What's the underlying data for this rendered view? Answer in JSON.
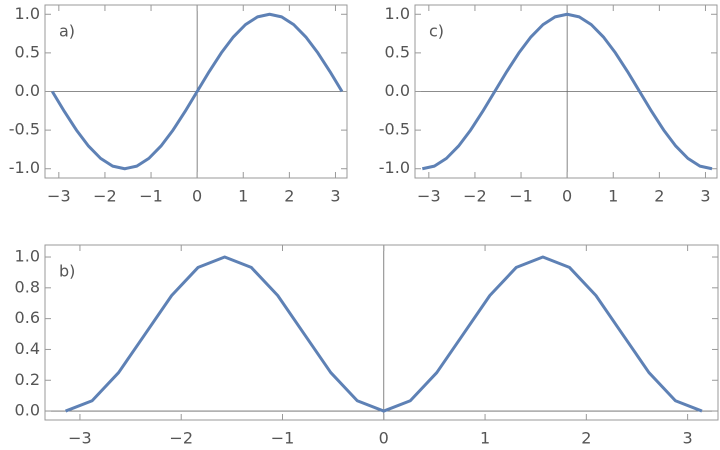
{
  "chart_data": [
    {
      "type": "line",
      "annotation": "a)",
      "color": "#5e81b5",
      "x": [
        -3.1416,
        -2.8798,
        -2.618,
        -2.3562,
        -2.0944,
        -1.8326,
        -1.5708,
        -1.309,
        -1.0472,
        -0.7854,
        -0.5236,
        -0.2618,
        0,
        0.2618,
        0.5236,
        0.7854,
        1.0472,
        1.309,
        1.5708,
        1.8326,
        2.0944,
        2.3562,
        2.618,
        2.8798,
        3.1416
      ],
      "values": [
        0,
        -0.2588,
        -0.5,
        -0.7071,
        -0.866,
        -0.9659,
        -1,
        -0.9659,
        -0.866,
        -0.7071,
        -0.5,
        -0.2588,
        0,
        0.2588,
        0.5,
        0.7071,
        0.866,
        0.9659,
        1,
        0.9659,
        0.866,
        0.7071,
        0.5,
        0.2588,
        0
      ],
      "xlim": [
        -3.3,
        3.25
      ],
      "ylim": [
        -1.12,
        1.12
      ],
      "xticks": [
        {
          "value": -3,
          "label": "−3"
        },
        {
          "value": -2,
          "label": "−2"
        },
        {
          "value": -1,
          "label": "−1"
        },
        0,
        1,
        2,
        3
      ],
      "yticks": [
        {
          "value": -1,
          "label": "-1.0"
        },
        {
          "value": -0.5,
          "label": "-0.5"
        },
        {
          "value": 0,
          "label": "0.0"
        },
        0.5,
        {
          "value": 1,
          "label": "1.0"
        }
      ]
    },
    {
      "type": "line",
      "annotation": "c)",
      "color": "#5e81b5",
      "x": [
        -3.1416,
        -2.8798,
        -2.618,
        -2.3562,
        -2.0944,
        -1.8326,
        -1.5708,
        -1.309,
        -1.0472,
        -0.7854,
        -0.5236,
        -0.2618,
        0,
        0.2618,
        0.5236,
        0.7854,
        1.0472,
        1.309,
        1.5708,
        1.8326,
        2.0944,
        2.3562,
        2.618,
        2.8798,
        3.1416
      ],
      "values": [
        -1,
        -0.9659,
        -0.866,
        -0.7071,
        -0.5,
        -0.2588,
        0,
        0.2588,
        0.5,
        0.7071,
        0.866,
        0.9659,
        1,
        0.9659,
        0.866,
        0.7071,
        0.5,
        0.2588,
        0,
        -0.2588,
        -0.5,
        -0.7071,
        -0.866,
        -0.9659,
        -1
      ],
      "xlim": [
        -3.3,
        3.25
      ],
      "ylim": [
        -1.12,
        1.12
      ],
      "xticks": [
        {
          "value": -3,
          "label": "−3"
        },
        {
          "value": -2,
          "label": "−2"
        },
        {
          "value": -1,
          "label": "−1"
        },
        0,
        1,
        2,
        3
      ],
      "yticks": [
        {
          "value": -1,
          "label": "-1.0"
        },
        {
          "value": -0.5,
          "label": "-0.5"
        },
        {
          "value": 0,
          "label": "0.0"
        },
        0.5,
        {
          "value": 1,
          "label": "1.0"
        }
      ]
    },
    {
      "type": "line",
      "annotation": "b)",
      "color": "#5e81b5",
      "x": [
        -3.1416,
        -2.8798,
        -2.618,
        -2.3562,
        -2.0944,
        -1.8326,
        -1.5708,
        -1.309,
        -1.0472,
        -0.7854,
        -0.5236,
        -0.2618,
        0,
        0.2618,
        0.5236,
        0.7854,
        1.0472,
        1.309,
        1.5708,
        1.8326,
        2.0944,
        2.3562,
        2.618,
        2.8798,
        3.1416
      ],
      "values": [
        0,
        0.067,
        0.25,
        0.5,
        0.75,
        0.933,
        1,
        0.933,
        0.75,
        0.5,
        0.25,
        0.067,
        0,
        0.067,
        0.25,
        0.5,
        0.75,
        0.933,
        1,
        0.933,
        0.75,
        0.5,
        0.25,
        0.067,
        0
      ],
      "xlim": [
        -3.345,
        3.3
      ],
      "ylim": [
        -0.058,
        1.078
      ],
      "xticks": [
        {
          "value": -3,
          "label": "−3"
        },
        {
          "value": -2,
          "label": "−2"
        },
        {
          "value": -1,
          "label": "−1"
        },
        0,
        1,
        2,
        3
      ],
      "yticks": [
        {
          "value": 0,
          "label": "0.0"
        },
        0.2,
        0.4,
        0.6,
        0.8,
        {
          "value": 1,
          "label": "1.0"
        }
      ]
    }
  ]
}
